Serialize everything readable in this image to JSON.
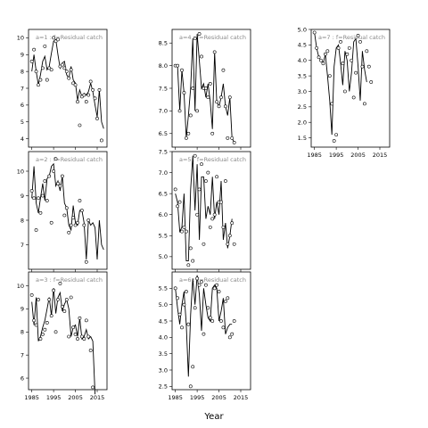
{
  "figure": {
    "xlabel": "Year"
  },
  "chart_data": [
    {
      "type": "line",
      "title": "a=1 : f=Residual catch",
      "x": [
        1985,
        1986,
        1987,
        1988,
        1989,
        1990,
        1991,
        1992,
        1993,
        1994,
        1995,
        1996,
        1997,
        1998,
        1999,
        2000,
        2001,
        2002,
        2003,
        2004,
        2005,
        2006,
        2007,
        2008,
        2009,
        2010,
        2011,
        2012,
        2013,
        2014,
        2015,
        2016,
        2017,
        2018
      ],
      "fitted": [
        8.0,
        9.0,
        8.0,
        7.2,
        7.8,
        8.6,
        8.9,
        8.1,
        8.3,
        9.1,
        9.8,
        9.9,
        9.0,
        8.2,
        8.5,
        8.6,
        7.8,
        7.6,
        8.3,
        7.5,
        7.3,
        6.3,
        6.9,
        6.5,
        6.7,
        6.6,
        6.8,
        7.3,
        6.8,
        6.0,
        5.3,
        6.9,
        5.0,
        4.6
      ],
      "observed": [
        8.6,
        9.3,
        8.0,
        7.2,
        7.5,
        8.2,
        9.5,
        7.5,
        8.2,
        8.1,
        10.0,
        9.8,
        9.9,
        8.3,
        8.4,
        8.2,
        8.0,
        7.6,
        8.1,
        7.3,
        7.2,
        6.2,
        4.8,
        6.5,
        6.6,
        6.2,
        6.6,
        7.4,
        6.9,
        6.4,
        5.2,
        6.9,
        3.9
      ],
      "ylim": [
        3.5,
        10.5
      ],
      "yticks": [
        "4",
        "5",
        "6",
        "7",
        "8",
        "9",
        "10"
      ],
      "ytick_values": [
        4,
        5,
        6,
        7,
        8,
        9,
        10
      ]
    },
    {
      "type": "line",
      "title": "a=2 : f=Residual catch",
      "x": [
        1985,
        1986,
        1987,
        1988,
        1989,
        1990,
        1991,
        1992,
        1993,
        1994,
        1995,
        1996,
        1997,
        1998,
        1999,
        2000,
        2001,
        2002,
        2003,
        2004,
        2005,
        2006,
        2007,
        2008,
        2009,
        2010,
        2011,
        2012,
        2013,
        2014,
        2015,
        2016,
        2017,
        2018
      ],
      "fitted": [
        8.9,
        10.2,
        8.7,
        8.3,
        8.9,
        9.5,
        8.8,
        9.7,
        9.8,
        10.2,
        10.3,
        9.4,
        9.6,
        9.2,
        9.8,
        8.7,
        8.5,
        7.8,
        7.6,
        8.6,
        7.9,
        7.8,
        8.4,
        8.4,
        7.9,
        6.4,
        8.0,
        7.8,
        7.9,
        7.7,
        6.4,
        8.0,
        7.0,
        6.8
      ],
      "observed": [
        9.2,
        8.9,
        7.6,
        8.9,
        8.3,
        9.0,
        9.6,
        8.8,
        9.8,
        7.9,
        10.0,
        10.5,
        9.5,
        9.4,
        9.8,
        8.2,
        8.5,
        7.5,
        7.8,
        8.1,
        7.8,
        7.9,
        8.8,
        8.4,
        7.8,
        6.3,
        8.0
      ],
      "ylim": [
        6.0,
        10.8
      ],
      "yticks": [
        "7",
        "8",
        "9",
        "10"
      ],
      "ytick_values": [
        7,
        8,
        9,
        10
      ]
    },
    {
      "type": "line",
      "title": "a=3 : f=Residual catch",
      "x": [
        1985,
        1986,
        1987,
        1988,
        1989,
        1990,
        1991,
        1992,
        1993,
        1994,
        1995,
        1996,
        1997,
        1998,
        1999,
        2000,
        2001,
        2002,
        2003,
        2004,
        2005,
        2006,
        2007,
        2008,
        2009,
        2010,
        2011,
        2012,
        2013,
        2014,
        2015,
        2016,
        2017,
        2018
      ],
      "fitted": [
        9.3,
        8.3,
        9.5,
        7.6,
        7.8,
        8.2,
        8.5,
        9.0,
        9.5,
        8.7,
        9.9,
        8.8,
        9.5,
        9.7,
        8.9,
        9.2,
        9.4,
        9.0,
        7.8,
        8.2,
        8.3,
        7.8,
        8.6,
        7.7,
        7.8,
        8.1,
        7.7,
        7.8,
        7.6,
        5.3
      ],
      "observed": [
        9.6,
        8.5,
        8.3,
        9.4,
        7.7,
        7.9,
        8.1,
        8.4,
        9.4,
        8.7,
        9.8,
        8.0,
        9.4,
        10.1,
        9.1,
        8.9,
        9.4,
        7.8,
        9.5,
        8.2,
        7.9,
        7.7,
        8.6,
        7.8,
        7.7,
        8.5,
        7.8,
        7.2,
        5.6
      ],
      "ylim": [
        5.5,
        10.6
      ],
      "yticks": [
        "6",
        "7",
        "8",
        "9",
        "10"
      ],
      "ytick_values": [
        6,
        7,
        8,
        9,
        10
      ]
    },
    {
      "type": "line",
      "title": "a=4 : f=Residual catch",
      "x": [
        1985,
        1986,
        1987,
        1988,
        1989,
        1990,
        1991,
        1992,
        1993,
        1994,
        1995,
        1996,
        1997,
        1998,
        1999,
        2000,
        2001,
        2002,
        2003,
        2004,
        2005,
        2006,
        2007,
        2008,
        2009,
        2010,
        2011,
        2012,
        2013,
        2014,
        2015,
        2016,
        2017,
        2018
      ],
      "fitted": [
        8.0,
        8.0,
        7.0,
        7.9,
        7.4,
        6.4,
        6.9,
        7.5,
        8.6,
        7.0,
        8.7,
        8.1,
        7.5,
        7.6,
        7.3,
        7.6,
        7.2,
        6.6,
        8.3,
        7.2,
        7.1,
        7.3,
        7.6,
        7.1,
        6.9,
        7.3,
        6.4,
        6.3
      ],
      "observed": [
        8.0,
        8.0,
        7.0,
        7.9,
        7.4,
        6.4,
        6.5,
        6.9,
        7.5,
        8.6,
        7.0,
        8.7,
        8.2,
        7.5,
        7.5,
        7.3,
        7.6,
        6.5,
        8.3,
        7.2,
        7.1,
        7.3,
        7.9,
        7.1,
        6.4,
        7.3,
        6.4,
        6.3
      ],
      "ylim": [
        6.2,
        8.8
      ],
      "yticks": [
        "6.5",
        "7.0",
        "7.5",
        "8.0",
        "8.5"
      ],
      "ytick_values": [
        6.5,
        7.0,
        7.5,
        8.0,
        8.5
      ]
    },
    {
      "type": "line",
      "title": "a=5 : f=Residual catch",
      "x": [
        1985,
        1986,
        1987,
        1988,
        1989,
        1990,
        1991,
        1992,
        1993,
        1994,
        1995,
        1996,
        1997,
        1998,
        1999,
        2000,
        2001,
        2002,
        2003,
        2004,
        2005,
        2006,
        2007,
        2008,
        2009,
        2010,
        2011,
        2012,
        2013,
        2014,
        2015,
        2016,
        2017,
        2018
      ],
      "fitted": [
        6.5,
        6.3,
        5.6,
        5.7,
        6.5,
        4.9,
        4.9,
        6.6,
        7.4,
        6.1,
        7.2,
        5.4,
        6.9,
        6.9,
        5.9,
        6.2,
        6.0,
        6.9,
        5.9,
        6.3,
        6.0,
        6.8,
        5.4,
        5.8,
        5.2,
        5.5,
        5.9
      ],
      "observed": [
        6.6,
        6.2,
        6.3,
        5.6,
        5.7,
        5.6,
        4.8,
        5.2,
        4.9,
        7.4,
        6.0,
        6.6,
        7.2,
        5.3,
        6.8,
        7.0,
        5.7,
        5.9,
        6.0,
        6.9,
        6.3,
        6.3,
        5.7,
        6.8,
        5.3,
        5.5,
        5.8,
        5.3
      ],
      "ylim": [
        4.7,
        7.5
      ],
      "yticks": [
        "5.0",
        "5.5",
        "6.0",
        "6.5",
        "7.0",
        "7.5"
      ],
      "ytick_values": [
        5.0,
        5.5,
        6.0,
        6.5,
        7.0,
        7.5
      ]
    },
    {
      "type": "line",
      "title": "a=6 : f=Residual catch",
      "x": [
        1985,
        1986,
        1987,
        1988,
        1989,
        1990,
        1991,
        1992,
        1993,
        1994,
        1995,
        1996,
        1997,
        1998,
        1999,
        2000,
        2001,
        2002,
        2003,
        2004,
        2005,
        2006,
        2007,
        2008,
        2009,
        2010,
        2011,
        2012,
        2013,
        2014,
        2015,
        2016,
        2017,
        2018
      ],
      "fitted": [
        5.5,
        4.9,
        4.4,
        5.0,
        5.4,
        4.4,
        2.8,
        4.7,
        5.8,
        5.0,
        5.9,
        5.3,
        4.2,
        5.5,
        5.0,
        4.6,
        4.5,
        5.5,
        5.6,
        5.5,
        4.5,
        4.8,
        5.2,
        4.1,
        4.3,
        4.4,
        4.4
      ],
      "observed": [
        5.5,
        5.2,
        4.7,
        4.3,
        5.0,
        5.4,
        4.4,
        2.5,
        3.1,
        4.9,
        5.8,
        5.6,
        5.7,
        4.1,
        5.6,
        4.9,
        4.6,
        4.5,
        5.5,
        5.6,
        5.4,
        4.5,
        4.3,
        5.1,
        5.2,
        4.0,
        4.1,
        4.5
      ],
      "ylim": [
        2.4,
        6.0
      ],
      "yticks": [
        "2.5",
        "3.0",
        "3.5",
        "4.0",
        "4.5",
        "5.0",
        "5.5"
      ],
      "ytick_values": [
        2.5,
        3.0,
        3.5,
        4.0,
        4.5,
        5.0,
        5.5
      ]
    },
    {
      "type": "line",
      "title": "a=7 : f=Residual catch",
      "x": [
        1985,
        1986,
        1987,
        1988,
        1989,
        1990,
        1991,
        1992,
        1993,
        1994,
        1995,
        1996,
        1997,
        1998,
        1999,
        2000,
        2001,
        2002,
        2003,
        2004,
        2005,
        2006,
        2007,
        2008,
        2009,
        2010,
        2011,
        2012,
        2013,
        2014,
        2015,
        2016,
        2017,
        2018
      ],
      "fitted": [
        4.9,
        4.4,
        4.1,
        4.0,
        3.9,
        4.2,
        3.5,
        2.7,
        1.6,
        3.8,
        4.4,
        4.5,
        3.9,
        3.2,
        4.3,
        4.0,
        3.0,
        3.6,
        4.6,
        4.7,
        3.8,
        2.7,
        4.3,
        3.7,
        3.3
      ],
      "observed": [
        4.9,
        4.4,
        4.1,
        4.0,
        3.9,
        4.2,
        4.3,
        3.5,
        2.6,
        1.4,
        1.6,
        4.4,
        4.6,
        3.9,
        3.0,
        4.2,
        4.4,
        4.0,
        2.8,
        3.6,
        4.8,
        4.6,
        3.8,
        2.6,
        4.3,
        3.8,
        3.3
      ],
      "ylim": [
        1.2,
        5.0
      ],
      "yticks": [
        "1.5",
        "2.0",
        "2.5",
        "3.0",
        "3.5",
        "4.0",
        "4.5",
        "5.0"
      ],
      "ytick_values": [
        1.5,
        2.0,
        2.5,
        3.0,
        3.5,
        4.0,
        4.5,
        5.0
      ]
    }
  ],
  "xticks": [
    "1985",
    "1995",
    "2005",
    "2015"
  ],
  "xtick_values": [
    1985,
    1995,
    2005,
    2015
  ]
}
